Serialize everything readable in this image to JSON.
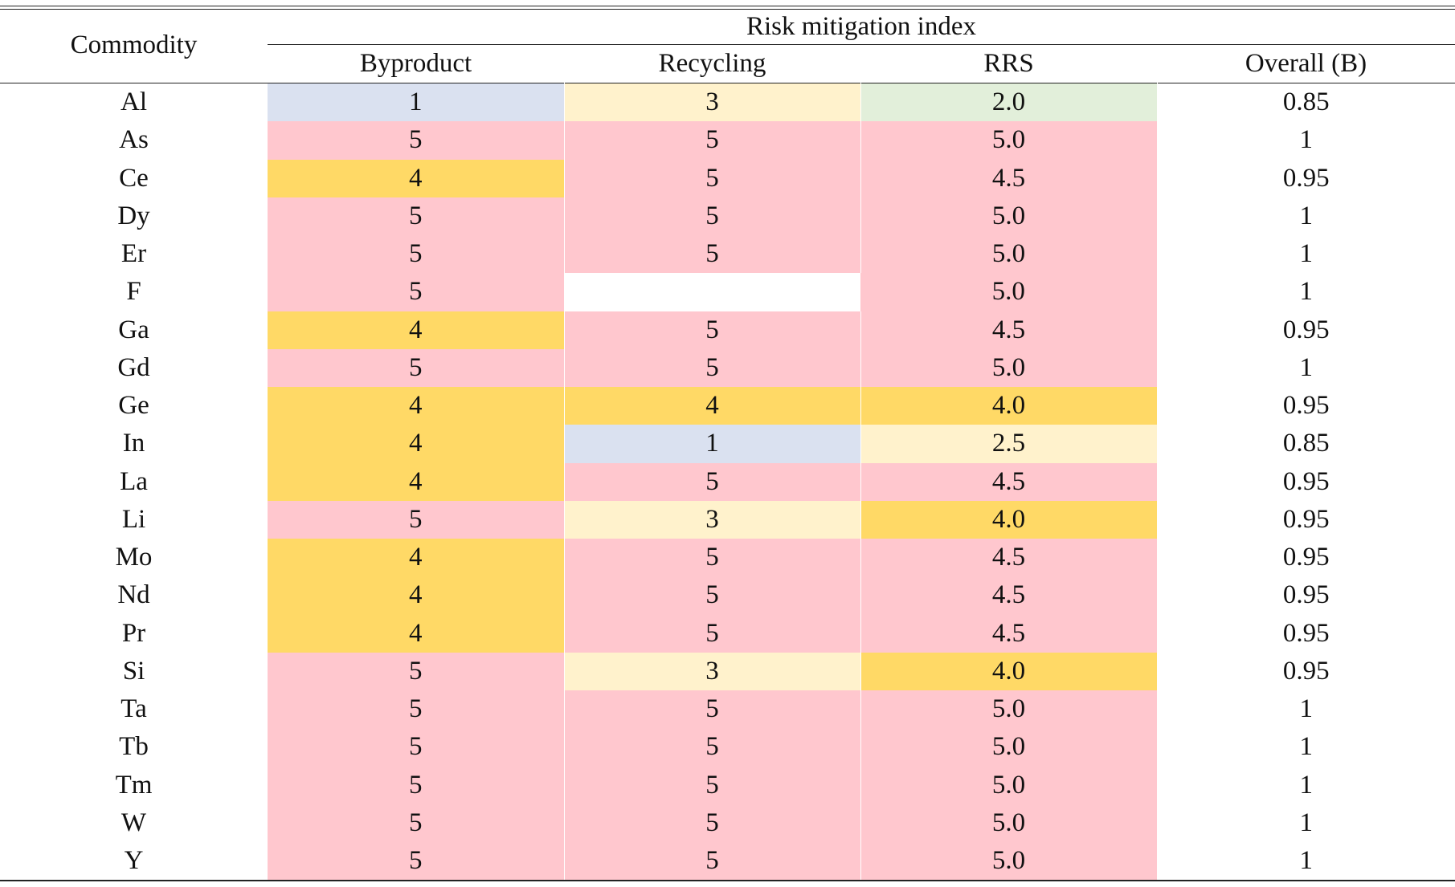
{
  "table": {
    "header": {
      "commodity": "Commodity",
      "group": "Risk mitigation index",
      "columns": [
        "Byproduct",
        "Recycling",
        "RRS",
        "Overall (B)"
      ]
    },
    "colors": {
      "1": "#dae1f0",
      "2": "#e2efda",
      "3": "#fff2cc",
      "4": "#ffd966",
      "5": "#ffc7ce",
      "2.0": "#e2efda",
      "2.5": "#fff2cc",
      "4.0": "#ffd966",
      "4.5": "#ffc7ce",
      "5.0": "#ffc7ce"
    },
    "rows": [
      {
        "commodity": "Al",
        "byproduct": "1",
        "recycling": "3",
        "rrs": "2.0",
        "overall": "0.85"
      },
      {
        "commodity": "As",
        "byproduct": "5",
        "recycling": "5",
        "rrs": "5.0",
        "overall": "1"
      },
      {
        "commodity": "Ce",
        "byproduct": "4",
        "recycling": "5",
        "rrs": "4.5",
        "overall": "0.95"
      },
      {
        "commodity": "Dy",
        "byproduct": "5",
        "recycling": "5",
        "rrs": "5.0",
        "overall": "1"
      },
      {
        "commodity": "Er",
        "byproduct": "5",
        "recycling": "5",
        "rrs": "5.0",
        "overall": "1"
      },
      {
        "commodity": "F",
        "byproduct": "5",
        "recycling": "",
        "rrs": "5.0",
        "overall": "1"
      },
      {
        "commodity": "Ga",
        "byproduct": "4",
        "recycling": "5",
        "rrs": "4.5",
        "overall": "0.95"
      },
      {
        "commodity": "Gd",
        "byproduct": "5",
        "recycling": "5",
        "rrs": "5.0",
        "overall": "1"
      },
      {
        "commodity": "Ge",
        "byproduct": "4",
        "recycling": "4",
        "rrs": "4.0",
        "overall": "0.95"
      },
      {
        "commodity": "In",
        "byproduct": "4",
        "recycling": "1",
        "rrs": "2.5",
        "overall": "0.85"
      },
      {
        "commodity": "La",
        "byproduct": "4",
        "recycling": "5",
        "rrs": "4.5",
        "overall": "0.95"
      },
      {
        "commodity": "Li",
        "byproduct": "5",
        "recycling": "3",
        "rrs": "4.0",
        "overall": "0.95"
      },
      {
        "commodity": "Mo",
        "byproduct": "4",
        "recycling": "5",
        "rrs": "4.5",
        "overall": "0.95"
      },
      {
        "commodity": "Nd",
        "byproduct": "4",
        "recycling": "5",
        "rrs": "4.5",
        "overall": "0.95"
      },
      {
        "commodity": "Pr",
        "byproduct": "4",
        "recycling": "5",
        "rrs": "4.5",
        "overall": "0.95"
      },
      {
        "commodity": "Si",
        "byproduct": "5",
        "recycling": "3",
        "rrs": "4.0",
        "overall": "0.95"
      },
      {
        "commodity": "Ta",
        "byproduct": "5",
        "recycling": "5",
        "rrs": "5.0",
        "overall": "1"
      },
      {
        "commodity": "Tb",
        "byproduct": "5",
        "recycling": "5",
        "rrs": "5.0",
        "overall": "1"
      },
      {
        "commodity": "Tm",
        "byproduct": "5",
        "recycling": "5",
        "rrs": "5.0",
        "overall": "1"
      },
      {
        "commodity": "W",
        "byproduct": "5",
        "recycling": "5",
        "rrs": "5.0",
        "overall": "1"
      },
      {
        "commodity": "Y",
        "byproduct": "5",
        "recycling": "5",
        "rrs": "5.0",
        "overall": "1"
      }
    ]
  }
}
